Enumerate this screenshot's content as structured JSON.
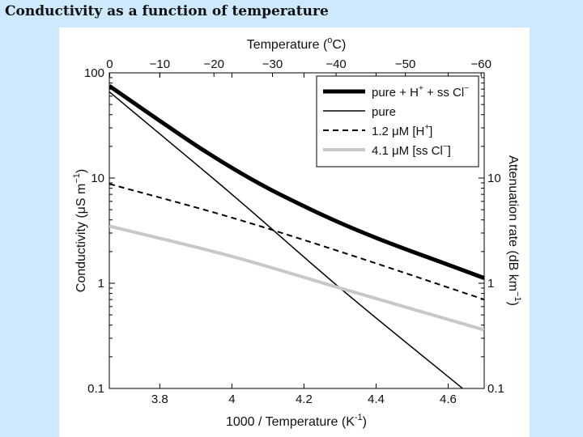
{
  "slide": {
    "title": "Conductivity as a function of temperature"
  },
  "chart_data": {
    "type": "line",
    "title": "",
    "xlabel": "1000 / Temperature (K",
    "xlabel_sup": "-1",
    "xlabel_close": ")",
    "ylabel": "Conductivity (μS m",
    "ylabel_sup": "−1",
    "ylabel_close": ")",
    "y2label": "Attenuation rate (dB km",
    "y2label_sup": "−1",
    "y2label_close": ")",
    "x2label": "Temperature (",
    "x2label_sup": "o",
    "x2label_close": "C)",
    "xlim": [
      3.66,
      4.7
    ],
    "ylim": [
      0.1,
      100
    ],
    "yscale": "log",
    "xticks": [
      3.8,
      4,
      4.2,
      4.4,
      4.6
    ],
    "xtick_labels": [
      "3.8",
      "4",
      "4.2",
      "4.4",
      "4.6"
    ],
    "yticks": [
      0.1,
      1,
      10,
      100
    ],
    "ytick_labels": [
      "0.1",
      "1",
      "10",
      "100"
    ],
    "y2ticks": [
      0.1,
      1,
      10
    ],
    "y2tick_labels": [
      "0.1",
      "1",
      "10"
    ],
    "x2ticks_celsius": [
      0,
      -10,
      -20,
      -30,
      -40,
      -50,
      -60
    ],
    "x2tick_labels": [
      "0",
      "−10",
      "−20",
      "−30",
      "−40",
      "−50",
      "−60"
    ],
    "legend_position": "top-right",
    "series": [
      {
        "name": "pure + H⁺ + ss Cl⁻",
        "label_parts": [
          "pure + H",
          "+",
          " + ss Cl",
          "−"
        ],
        "color": "#000000",
        "style": "thick",
        "x": [
          3.66,
          3.8,
          3.9,
          4.0,
          4.1,
          4.2,
          4.3,
          4.4,
          4.5,
          4.6,
          4.7
        ],
        "values": [
          75,
          35,
          20.5,
          12.5,
          8.0,
          5.4,
          3.75,
          2.7,
          2.0,
          1.5,
          1.12
        ]
      },
      {
        "name": "pure",
        "label_parts": [
          "pure"
        ],
        "color": "#000000",
        "style": "thin",
        "x": [
          3.66,
          4.0,
          4.3,
          4.64
        ],
        "values": [
          66,
          7.0,
          0.9,
          0.1
        ]
      },
      {
        "name": "1.2 μM [H⁺]",
        "label_parts": [
          "1.2 μM [H",
          "+",
          "]"
        ],
        "color": "#000000",
        "style": "dashed",
        "x": [
          3.66,
          4.0,
          4.3,
          4.7
        ],
        "values": [
          8.8,
          4.2,
          2.0,
          0.7
        ]
      },
      {
        "name": "4.1 μM [ss Cl⁻]",
        "label_parts": [
          "4.1 μM [ss Cl",
          "−",
          "]"
        ],
        "color": "#c8c8c8",
        "style": "thick-light",
        "x": [
          3.66,
          4.0,
          4.3,
          4.7
        ],
        "values": [
          3.5,
          1.8,
          0.9,
          0.36
        ]
      }
    ]
  }
}
